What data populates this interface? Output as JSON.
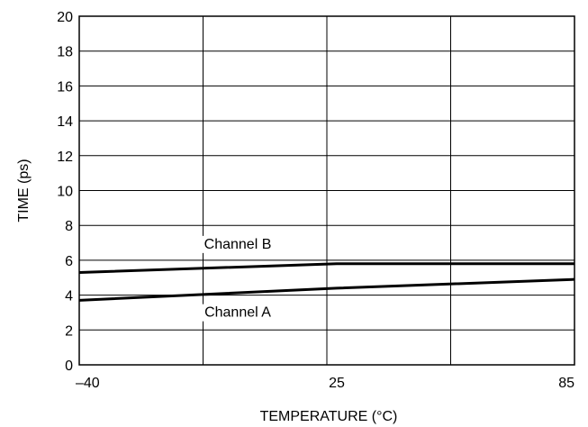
{
  "chart_data": {
    "type": "line",
    "title": "",
    "xlabel": "TEMPERATURE (°C)",
    "ylabel": "TIME (ps)",
    "xlim": [
      -40,
      85
    ],
    "ylim": [
      0,
      20
    ],
    "grid": true,
    "x_ticks": [
      {
        "value": -40,
        "label": "–40"
      },
      {
        "value": 25,
        "label": "25"
      },
      {
        "value": 85,
        "label": "85"
      }
    ],
    "y_ticks": [
      {
        "value": 0,
        "label": "0"
      },
      {
        "value": 2,
        "label": "2"
      },
      {
        "value": 4,
        "label": "4"
      },
      {
        "value": 6,
        "label": "6"
      },
      {
        "value": 8,
        "label": "8"
      },
      {
        "value": 10,
        "label": "10"
      },
      {
        "value": 12,
        "label": "12"
      },
      {
        "value": 14,
        "label": "14"
      },
      {
        "value": 16,
        "label": "16"
      },
      {
        "value": 18,
        "label": "18"
      },
      {
        "value": 20,
        "label": "20"
      }
    ],
    "series": [
      {
        "name": "Channel B",
        "x": [
          -40,
          25,
          85
        ],
        "y": [
          5.3,
          5.8,
          5.8
        ]
      },
      {
        "name": "Channel A",
        "x": [
          -40,
          25,
          85
        ],
        "y": [
          3.7,
          4.4,
          4.9
        ]
      }
    ]
  }
}
